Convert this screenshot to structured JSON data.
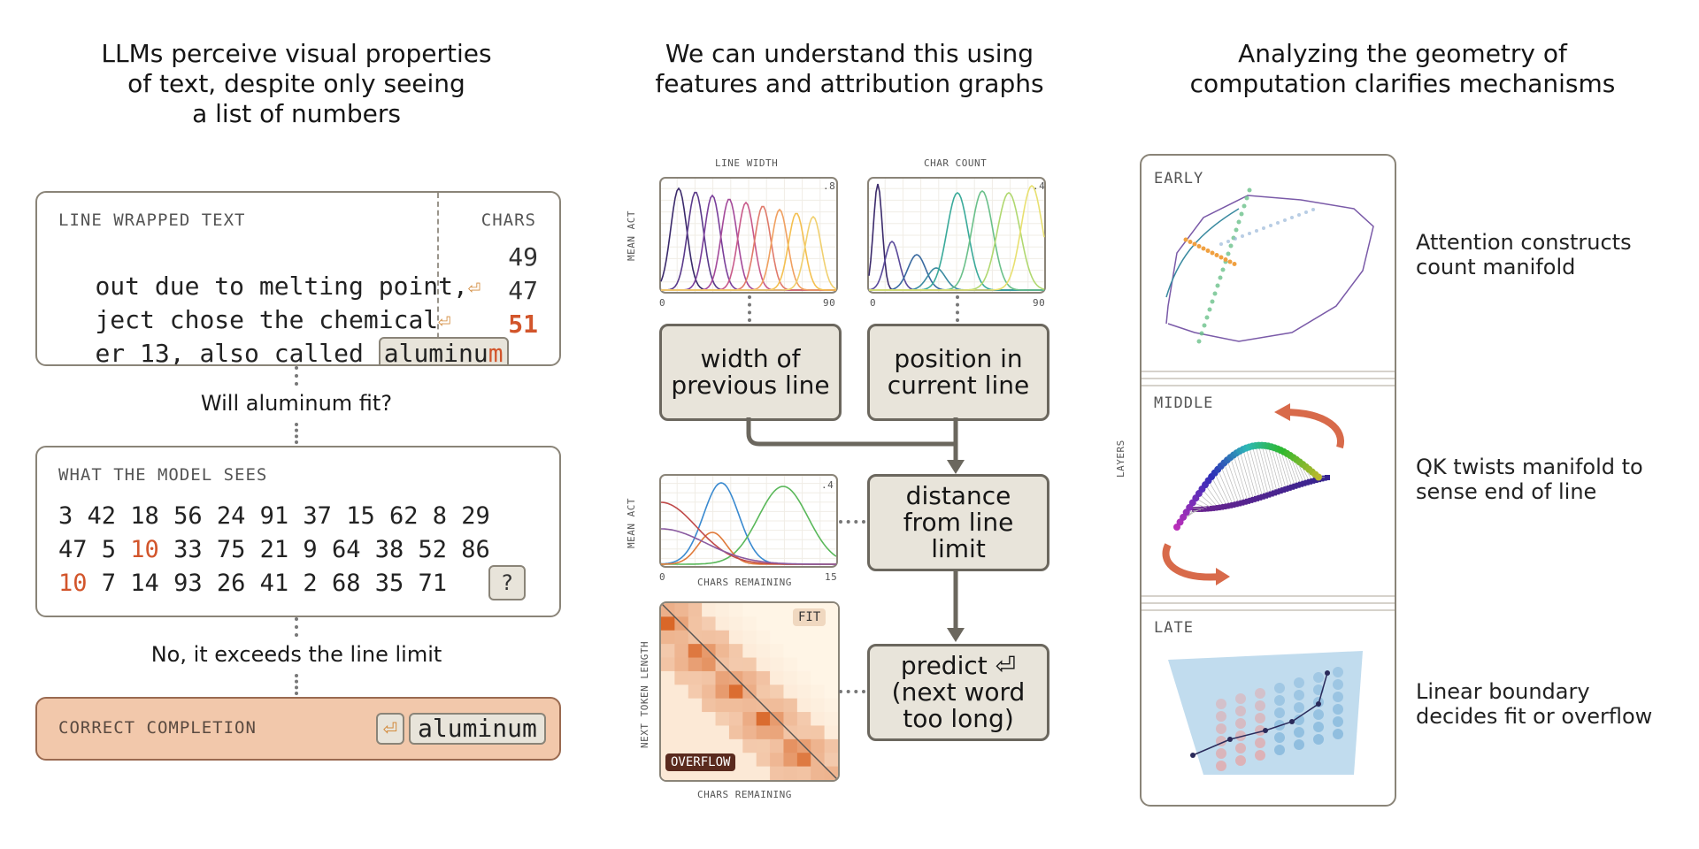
{
  "left": {
    "title_lines": [
      "LLMs perceive visual properties",
      "of text, despite only seeing",
      "a list of numbers"
    ],
    "wrapped_box": {
      "label": "LINE WRAPPED TEXT",
      "chars_label": "CHARS",
      "lines": [
        {
          "text": "out due to melting point,",
          "mark": "⏎",
          "chars": "49"
        },
        {
          "text": "ject chose the chemical",
          "mark": "⏎",
          "chars": "47"
        },
        {
          "text": "er 13, also called ",
          "token": "aluminu",
          "token_over": "m",
          "chars": "51"
        }
      ]
    },
    "question1": "Will aluminum fit?",
    "model_box": {
      "label": "WHAT THE MODEL SEES",
      "row1": [
        "3",
        "42",
        "18",
        "56",
        "24",
        "91",
        "37",
        "15",
        "62",
        "8",
        "29"
      ],
      "row2": [
        "47",
        "5",
        "10",
        "33",
        "75",
        "21",
        "9",
        "64",
        "38",
        "52",
        "86"
      ],
      "row3": [
        "10",
        "7",
        "14",
        "93",
        "26",
        "41",
        "2",
        "68",
        "35",
        "71"
      ],
      "unknown": "?"
    },
    "question2": "No, it exceeds the line limit",
    "completion": {
      "label": "CORRECT COMPLETION",
      "mark": "⏎",
      "token": "aluminum"
    }
  },
  "middle": {
    "title_lines": [
      "We can understand this using",
      "features and attribution graphs"
    ],
    "chart_line_width": {
      "title": "LINE WIDTH",
      "ylabel": "MEAN ACT",
      "ymax_label": ".8",
      "xmin_label": "0",
      "xmax_label": "90"
    },
    "chart_char_count": {
      "title": "CHAR COUNT",
      "ymax_label": ".4",
      "xmin_label": "0",
      "xmax_label": "90"
    },
    "chart_remaining": {
      "ylabel": "MEAN ACT",
      "xlabel": "CHARS REMAINING",
      "ymax_label": ".4",
      "xmin_label": "0",
      "xmax_label": "15"
    },
    "heatmap": {
      "ylabel": "NEXT TOKEN LENGTH",
      "xlabel": "CHARS REMAINING",
      "fit_label": "FIT",
      "overflow_label": "OVERFLOW"
    },
    "nodes": {
      "width": "width of\nprevious line",
      "position": "position in\ncurrent line",
      "distance": "distance\nfrom line\nlimit",
      "predict": "predict ⏎\n(next word\ntoo long)"
    }
  },
  "right": {
    "title_lines": [
      "Analyzing the geometry of",
      "computation clarifies mechanisms"
    ],
    "layers_label": "LAYERS",
    "panels": [
      {
        "label": "EARLY",
        "caption_lines": [
          "Attention constructs",
          "count manifold"
        ]
      },
      {
        "label": "MIDDLE",
        "caption_lines": [
          "QK twists manifold to",
          "sense end of line"
        ]
      },
      {
        "label": "LATE",
        "caption_lines": [
          "Linear boundary",
          "decides fit or overflow"
        ]
      }
    ]
  },
  "colors": {
    "accent_orange": "#d2552b",
    "node_fill": "#e8e4da",
    "completion_fill": "#f2c8ab",
    "box_border": "#8a8478"
  }
}
